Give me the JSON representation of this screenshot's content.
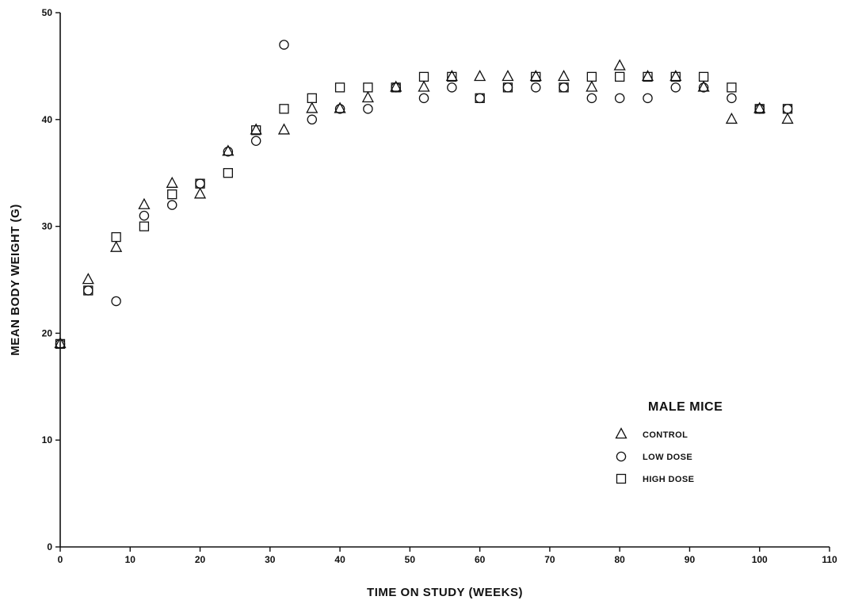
{
  "chart_data": {
    "type": "scatter",
    "title": "",
    "xlabel": "TIME ON STUDY (WEEKS)",
    "ylabel": "MEAN BODY WEIGHT (G)",
    "xlim": [
      0,
      110
    ],
    "ylim": [
      0,
      50
    ],
    "xticks": [
      0,
      10,
      20,
      30,
      40,
      50,
      60,
      70,
      80,
      90,
      100,
      110
    ],
    "yticks": [
      0,
      10,
      20,
      30,
      40,
      50
    ],
    "grid": false,
    "legend": {
      "title": "MALE MICE",
      "placement": "bottom-right"
    },
    "series": [
      {
        "name": "CONTROL",
        "marker": "triangle",
        "x": [
          0,
          4,
          8,
          12,
          16,
          20,
          24,
          28,
          32,
          36,
          40,
          44,
          48,
          52,
          56,
          60,
          64,
          68,
          72,
          76,
          80,
          84,
          88,
          92,
          96,
          100,
          104
        ],
        "y": [
          19,
          25,
          28,
          32,
          34,
          33,
          37,
          39,
          39,
          41,
          41,
          42,
          43,
          43,
          44,
          44,
          44,
          44,
          44,
          43,
          45,
          44,
          44,
          43,
          40,
          41,
          40
        ]
      },
      {
        "name": "LOW DOSE",
        "marker": "circle",
        "x": [
          0,
          4,
          8,
          12,
          16,
          20,
          24,
          28,
          32,
          36,
          40,
          44,
          48,
          52,
          56,
          60,
          64,
          68,
          72,
          76,
          80,
          84,
          88,
          92,
          96,
          100,
          104
        ],
        "y": [
          19,
          24,
          23,
          31,
          32,
          34,
          37,
          38,
          47,
          40,
          41,
          41,
          43,
          42,
          43,
          42,
          43,
          43,
          43,
          42,
          42,
          42,
          43,
          43,
          42,
          41,
          41
        ]
      },
      {
        "name": "HIGH DOSE",
        "marker": "square",
        "x": [
          0,
          4,
          8,
          12,
          16,
          20,
          24,
          28,
          32,
          36,
          40,
          44,
          48,
          52,
          56,
          60,
          64,
          68,
          72,
          76,
          80,
          84,
          88,
          92,
          96,
          100,
          104
        ],
        "y": [
          19,
          24,
          29,
          30,
          33,
          34,
          35,
          39,
          41,
          42,
          43,
          43,
          43,
          44,
          44,
          42,
          43,
          44,
          43,
          44,
          44,
          44,
          44,
          44,
          43,
          41,
          41
        ]
      }
    ]
  }
}
